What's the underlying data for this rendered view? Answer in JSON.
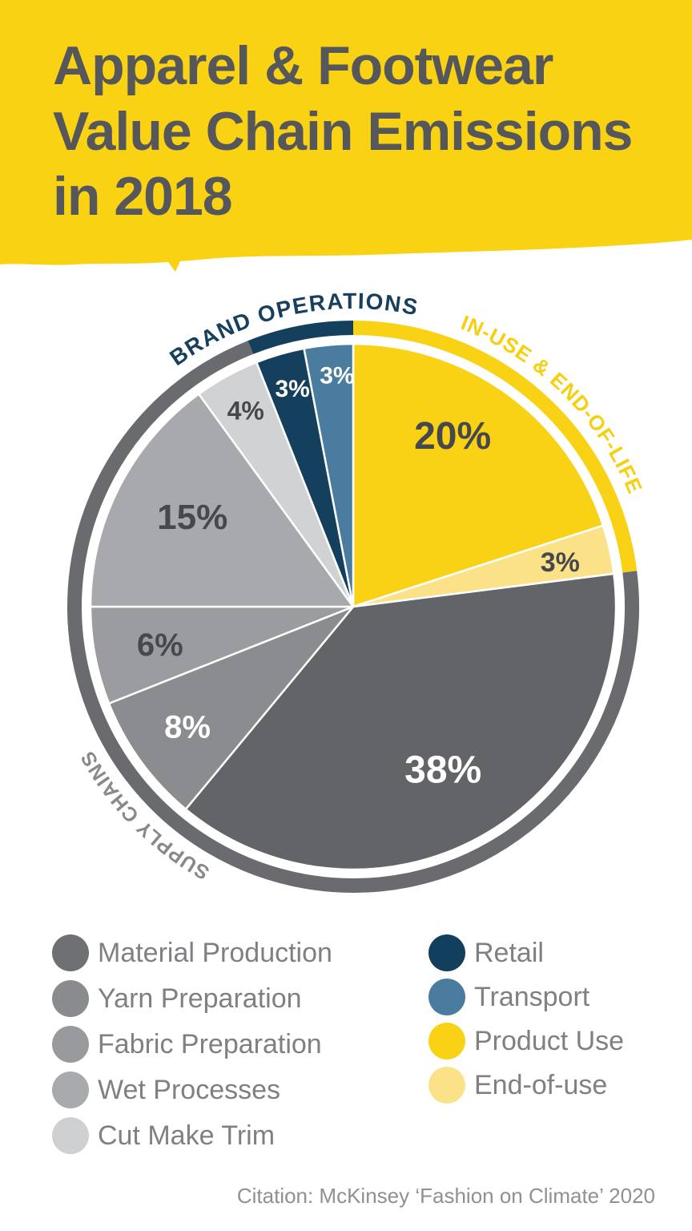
{
  "header": {
    "title": "Apparel & Footwear\nValue Chain Emissions\nin 2018",
    "background_color": "#F9D213",
    "text_color": "#55575B"
  },
  "chart_data": {
    "type": "pie",
    "title": "Apparel & Footwear Value Chain Emissions in 2018",
    "units": "%",
    "total": 100,
    "direction": "clockwise",
    "start_angle_deg": 0,
    "slices": [
      {
        "label": "Product Use",
        "value": 20,
        "display": "20%",
        "color": "#F9D216",
        "label_color": "#46484D"
      },
      {
        "label": "End-of-use",
        "value": 3,
        "display": "3%",
        "color": "#FBE289",
        "label_color": "#46484D"
      },
      {
        "label": "Material Production",
        "value": 38,
        "display": "38%",
        "color": "#626468",
        "label_color": "#FFFFFF"
      },
      {
        "label": "Yarn Preparation",
        "value": 8,
        "display": "8%",
        "color": "#8A8C90",
        "label_color": "#FFFFFF"
      },
      {
        "label": "Fabric Preparation",
        "value": 6,
        "display": "6%",
        "color": "#9A9CA0",
        "label_color": "#46484D"
      },
      {
        "label": "Wet Processes",
        "value": 15,
        "display": "15%",
        "color": "#A7A9AC",
        "label_color": "#46484D"
      },
      {
        "label": "Cut Make Trim",
        "value": 4,
        "display": "4%",
        "color": "#D0D2D3",
        "label_color": "#46484D"
      },
      {
        "label": "Retail",
        "value": 3,
        "display": "3%",
        "color": "#143F5D",
        "label_color": "#FFFFFF"
      },
      {
        "label": "Transport",
        "value": 3,
        "display": "3%",
        "color": "#4A7CA0",
        "label_color": "#FFFFFF"
      }
    ],
    "groups": [
      {
        "label": "IN-USE & END-OF-LIFE",
        "start_deg": 0,
        "end_deg": 82.8,
        "arc_color": "#F9D216",
        "text_color": "#F7CF0D",
        "text_angle_deg": 44.5
      },
      {
        "label": "SUPPLY CHAINS",
        "start_deg": 82.8,
        "end_deg": 338.4,
        "arc_color": "#696B6E",
        "text_color": "#87898C",
        "text_angle_deg": 225
      },
      {
        "label": "BRAND OPERATIONS",
        "start_deg": 338.4,
        "end_deg": 360,
        "arc_color": "#143F5D",
        "text_color": "#16405E",
        "text_angle_deg": 348
      }
    ],
    "legend_position": "bottom"
  },
  "legend": {
    "left": [
      {
        "label": "Material Production",
        "color": "#6E7073"
      },
      {
        "label": "Yarn Preparation",
        "color": "#898B8E"
      },
      {
        "label": "Fabric Preparation",
        "color": "#989A9D"
      },
      {
        "label": "Wet Processes",
        "color": "#A8AAAD"
      },
      {
        "label": "Cut Make Trim",
        "color": "#CED0D1"
      }
    ],
    "right": [
      {
        "label": "Retail",
        "color": "#123F5E"
      },
      {
        "label": "Transport",
        "color": "#4A7CA0"
      },
      {
        "label": "Product Use",
        "color": "#F9D216"
      },
      {
        "label": "End-of-use",
        "color": "#FBE289"
      }
    ]
  },
  "citation": "Citation: McKinsey ‘Fashion on Climate’ 2020"
}
